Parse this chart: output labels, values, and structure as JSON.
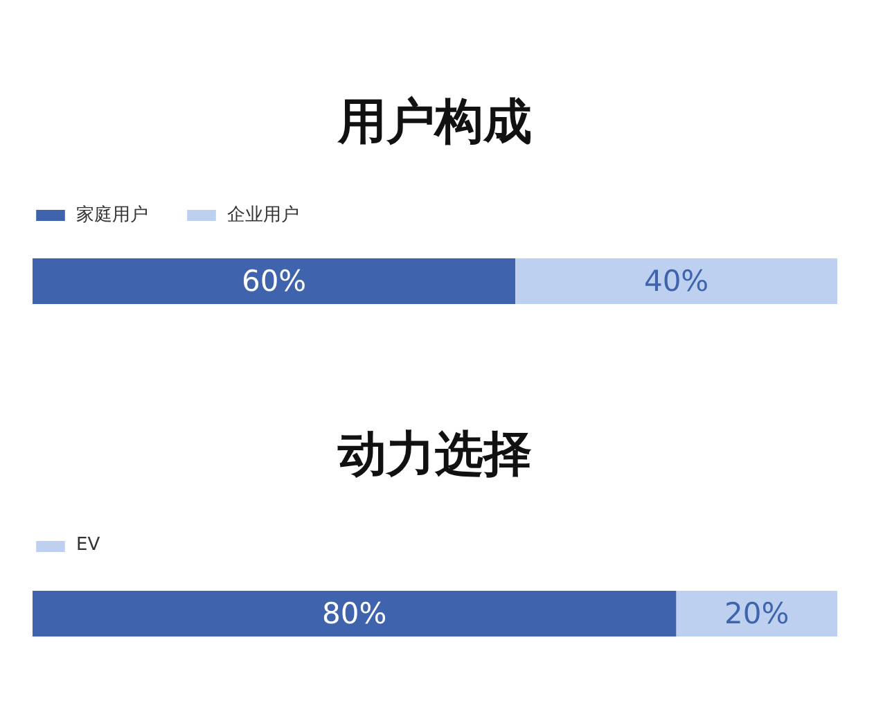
{
  "chart_data": [
    {
      "type": "bar",
      "orientation": "horizontal",
      "stacked": true,
      "title": "用户构成",
      "categories": [
        null
      ],
      "series": [
        {
          "name": "家庭用户",
          "color": "#3f63ad",
          "values": [
            60
          ],
          "value_labels": [
            "60%"
          ]
        },
        {
          "name": "企业用户",
          "color": "#bdd0f0",
          "values": [
            40
          ],
          "value_labels": [
            "40%"
          ]
        }
      ],
      "xlim": [
        0,
        100
      ],
      "tick_labels": false,
      "legend": "top left"
    },
    {
      "type": "bar",
      "orientation": "horizontal",
      "stacked": true,
      "title": "动力选择",
      "categories": [
        null
      ],
      "series": [
        {
          "color": "#3f63ad",
          "values": [
            80
          ],
          "value_labels": [
            "80%"
          ]
        },
        {
          "name": "EV",
          "color": "#bdd0f0",
          "values": [
            20
          ],
          "value_labels": [
            "20%"
          ]
        }
      ],
      "xlim": [
        0,
        100
      ],
      "tick_labels": false,
      "legend": "top left"
    }
  ]
}
